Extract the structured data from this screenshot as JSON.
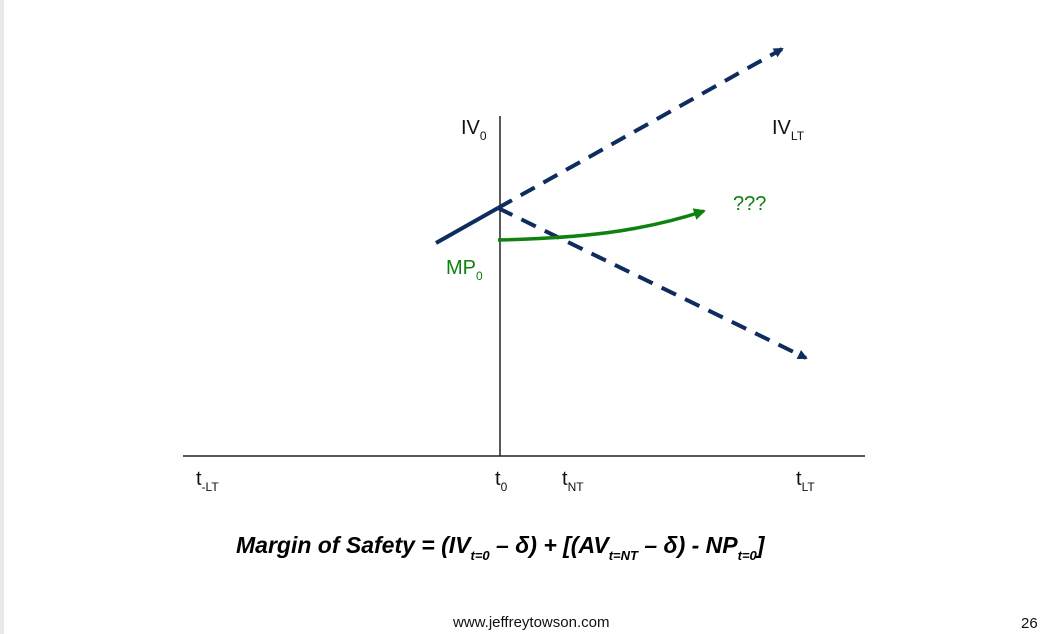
{
  "labels": {
    "iv0": {
      "main": "IV",
      "sub": "0"
    },
    "ivlt": {
      "main": "IV",
      "sub": "LT"
    },
    "mp0": {
      "main": "MP",
      "sub": "0"
    },
    "question": "???",
    "t_minus_lt": {
      "main": "t",
      "sub": "-LT"
    },
    "t0": {
      "main": "t",
      "sub": "0"
    },
    "tnt": {
      "main": "t",
      "sub": "NT"
    },
    "tlt": {
      "main": "t",
      "sub": "LT"
    }
  },
  "formula": {
    "prefix": "Margin of Safety = (IV",
    "sub1": "t=0",
    "part2": " – δ) + [(AV",
    "sub2": "t=NT",
    "part3": " – δ) - NP",
    "sub3": "t=0",
    "suffix": "]"
  },
  "footer": {
    "url": "www.jeffreytowson.com",
    "page": "26"
  },
  "colors": {
    "navy": "#0f2c5e",
    "green": "#108010",
    "axis": "#222222"
  }
}
